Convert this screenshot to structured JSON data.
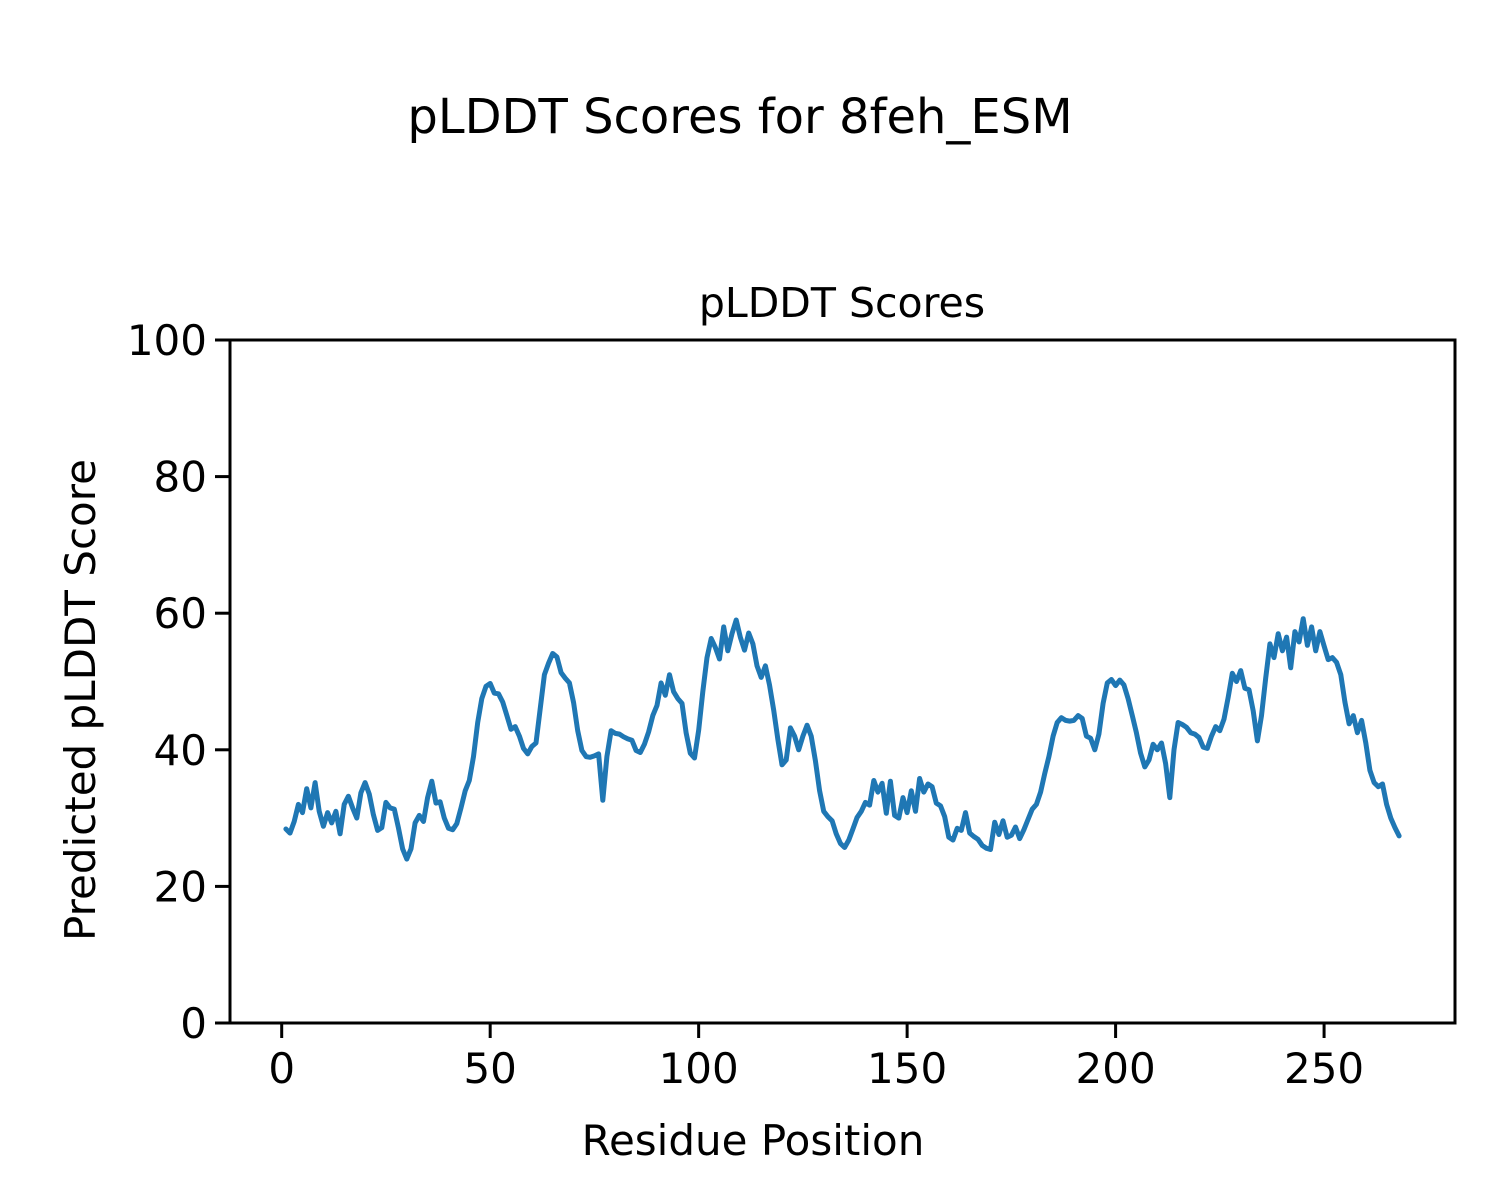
{
  "figure": {
    "suptitle": "pLDDT Scores for 8feh_ESM",
    "background_color": "#ffffff",
    "text_color": "#000000"
  },
  "chart_data": {
    "type": "line",
    "title": "pLDDT Scores",
    "xlabel": "Residue Position",
    "ylabel": "Predicted pLDDT Score",
    "x_ticks": [
      0,
      50,
      100,
      150,
      200,
      250
    ],
    "y_ticks": [
      0,
      20,
      40,
      60,
      80,
      100
    ],
    "xlim": [
      -12.4,
      281.4
    ],
    "ylim": [
      0,
      100
    ],
    "grid": false,
    "legend_position": "none",
    "line_color": "#1f77b4",
    "line_width": 5,
    "frame_color": "#000000",
    "series": [
      {
        "name": "pLDDT",
        "x_start": 1,
        "x_step": 1,
        "values": [
          28.4,
          27.8,
          29.5,
          32.0,
          30.8,
          34.3,
          31.5,
          35.2,
          31.0,
          28.8,
          30.8,
          29.3,
          31.0,
          27.7,
          32.0,
          33.2,
          31.5,
          30.0,
          33.7,
          35.2,
          33.5,
          30.5,
          28.2,
          28.6,
          32.3,
          31.5,
          31.3,
          28.6,
          25.5,
          24.0,
          25.5,
          29.3,
          30.4,
          29.5,
          33.0,
          35.4,
          32.2,
          32.4,
          30.0,
          28.5,
          28.3,
          29.2,
          31.5,
          34.0,
          35.5,
          39.0,
          44.0,
          47.5,
          49.3,
          49.7,
          48.3,
          48.2,
          47.0,
          45.0,
          43.0,
          43.4,
          42.0,
          40.2,
          39.4,
          40.5,
          41.0,
          46.0,
          51.0,
          52.7,
          54.1,
          53.6,
          51.3,
          50.5,
          49.8,
          46.9,
          42.8,
          39.9,
          39.0,
          38.9,
          39.1,
          39.4,
          32.6,
          39.0,
          42.8,
          42.4,
          42.3,
          41.9,
          41.6,
          41.4,
          39.9,
          39.6,
          40.8,
          42.6,
          45.0,
          46.5,
          49.8,
          48.0,
          51.0,
          48.5,
          47.5,
          46.8,
          42.5,
          39.5,
          38.8,
          42.9,
          48.5,
          53.5,
          56.3,
          55.0,
          53.3,
          58.0,
          54.5,
          57.0,
          59.0,
          56.5,
          54.6,
          57.1,
          55.5,
          52.3,
          50.6,
          52.3,
          49.5,
          45.8,
          41.5,
          37.8,
          38.5,
          43.2,
          42.0,
          40.0,
          42.0,
          43.6,
          42.0,
          38.4,
          34.0,
          31.0,
          30.2,
          29.6,
          27.7,
          26.3,
          25.7,
          26.8,
          28.4,
          30.1,
          31.0,
          32.3,
          31.9,
          35.5,
          33.8,
          35.1,
          30.7,
          35.4,
          30.4,
          30.0,
          33.0,
          30.8,
          34.0,
          31.0,
          35.8,
          33.8,
          35.0,
          34.6,
          32.2,
          31.8,
          30.2,
          27.2,
          26.8,
          28.5,
          28.2,
          30.8,
          27.8,
          27.3,
          26.9,
          26.0,
          25.6,
          25.4,
          29.4,
          27.6,
          29.6,
          27.2,
          27.5,
          28.7,
          27.0,
          28.3,
          29.8,
          31.3,
          32.0,
          33.8,
          36.5,
          39.0,
          42.0,
          44.0,
          44.7,
          44.3,
          44.2,
          44.3,
          45.0,
          44.6,
          42.0,
          41.7,
          40.0,
          42.3,
          46.8,
          49.8,
          50.3,
          49.4,
          50.2,
          49.5,
          47.5,
          45.0,
          42.5,
          39.5,
          37.5,
          38.5,
          40.8,
          40.0,
          41.0,
          38.0,
          33.0,
          40.0,
          44.0,
          43.7,
          43.3,
          42.5,
          42.3,
          41.8,
          40.4,
          40.2,
          42.0,
          43.4,
          42.8,
          44.5,
          47.7,
          51.2,
          50.0,
          51.6,
          49.0,
          48.8,
          45.7,
          41.3,
          45.0,
          50.5,
          55.5,
          53.5,
          57.0,
          54.5,
          56.5,
          52.0,
          57.3,
          55.8,
          59.2,
          55.3,
          58.0,
          54.5,
          57.3,
          55.2,
          53.2,
          53.5,
          52.8,
          51.0,
          47.0,
          43.8,
          45.0,
          42.5,
          44.3,
          41.0,
          37.0,
          35.2,
          34.6,
          35.0,
          32.0,
          30.0,
          28.6,
          27.4
        ]
      }
    ]
  }
}
